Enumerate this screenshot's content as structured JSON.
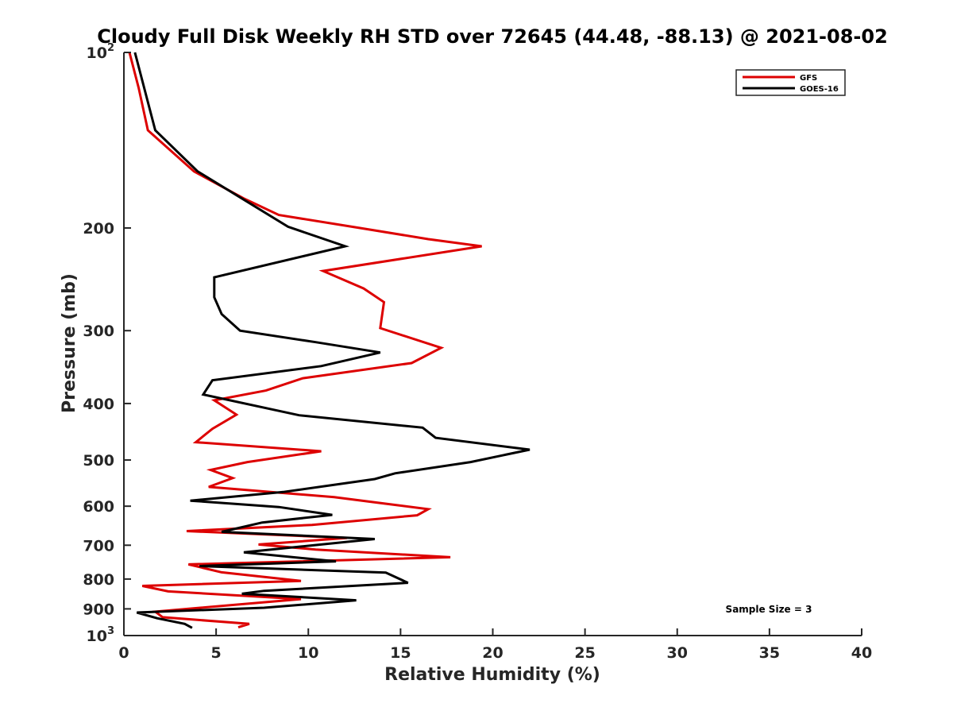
{
  "chart_data": {
    "type": "line",
    "title": "Cloudy Full Disk Weekly RH STD over 72645 (44.48, -88.13) @ 2021-08-02",
    "xlabel": "Relative Humidity (%)",
    "ylabel": "Pressure (mb)",
    "xlim": [
      0,
      40
    ],
    "ylim": [
      100,
      1000
    ],
    "yscale": "log",
    "y_reversed": true,
    "grid": false,
    "legend_position": "top-right",
    "x_ticks": [
      "0",
      "5",
      "10",
      "15",
      "20",
      "25",
      "30",
      "35",
      "40"
    ],
    "y_ticks": [
      {
        "value": 100,
        "base": "10",
        "exp": "2"
      },
      {
        "value": 200,
        "label": "200"
      },
      {
        "value": 300,
        "label": "300"
      },
      {
        "value": 400,
        "label": "400"
      },
      {
        "value": 500,
        "label": "500"
      },
      {
        "value": 600,
        "label": "600"
      },
      {
        "value": 700,
        "label": "700"
      },
      {
        "value": 800,
        "label": "800"
      },
      {
        "value": 900,
        "label": "900"
      },
      {
        "value": 1000,
        "base": "10",
        "exp": "3"
      }
    ],
    "annotation": "Sample Size = 3",
    "series": [
      {
        "name": "GFS",
        "color": "#dd0000",
        "points": [
          [
            0.3,
            100
          ],
          [
            0.8,
            115
          ],
          [
            1.3,
            136
          ],
          [
            3.8,
            160
          ],
          [
            6.5,
            178
          ],
          [
            8.4,
            190
          ],
          [
            12.8,
            200
          ],
          [
            16.5,
            209
          ],
          [
            19.4,
            215
          ],
          [
            10.8,
            237
          ],
          [
            13.0,
            254
          ],
          [
            14.1,
            268
          ],
          [
            13.9,
            297
          ],
          [
            17.2,
            321
          ],
          [
            15.6,
            341
          ],
          [
            9.7,
            362
          ],
          [
            7.7,
            380
          ],
          [
            4.9,
            395
          ],
          [
            6.1,
            418
          ],
          [
            4.8,
            442
          ],
          [
            3.9,
            466
          ],
          [
            10.7,
            483
          ],
          [
            6.7,
            504
          ],
          [
            4.7,
            520
          ],
          [
            5.9,
            537
          ],
          [
            4.6,
            556
          ],
          [
            11.4,
            579
          ],
          [
            16.5,
            607
          ],
          [
            15.9,
            622
          ],
          [
            10.2,
            646
          ],
          [
            3.4,
            662
          ],
          [
            12.1,
            680
          ],
          [
            7.3,
            698
          ],
          [
            10.4,
            712
          ],
          [
            17.7,
            734
          ],
          [
            3.5,
            755
          ],
          [
            5.3,
            779
          ],
          [
            9.6,
            806
          ],
          [
            1.0,
            822
          ],
          [
            2.4,
            840
          ],
          [
            9.6,
            866
          ],
          [
            1.7,
            910
          ],
          [
            2.1,
            930
          ],
          [
            6.8,
            955
          ],
          [
            6.2,
            968
          ]
        ]
      },
      {
        "name": "GOES-16",
        "color": "#000000",
        "points": [
          [
            0.6,
            100
          ],
          [
            1.7,
            136
          ],
          [
            4.0,
            160
          ],
          [
            8.9,
            199
          ],
          [
            12.0,
            215
          ],
          [
            4.9,
            243
          ],
          [
            4.9,
            263
          ],
          [
            5.3,
            281
          ],
          [
            6.3,
            300
          ],
          [
            10.4,
            314
          ],
          [
            13.9,
            327
          ],
          [
            10.7,
            345
          ],
          [
            4.8,
            365
          ],
          [
            4.3,
            386
          ],
          [
            9.5,
            419
          ],
          [
            16.2,
            440
          ],
          [
            16.9,
            458
          ],
          [
            22.0,
            480
          ],
          [
            18.8,
            504
          ],
          [
            14.7,
            527
          ],
          [
            13.6,
            539
          ],
          [
            8.7,
            567
          ],
          [
            3.6,
            587
          ],
          [
            8.4,
            602
          ],
          [
            11.3,
            621
          ],
          [
            7.5,
            640
          ],
          [
            5.3,
            664
          ],
          [
            13.6,
            683
          ],
          [
            6.5,
            720
          ],
          [
            11.5,
            746
          ],
          [
            4.1,
            760
          ],
          [
            14.2,
            780
          ],
          [
            15.4,
            812
          ],
          [
            7.6,
            838
          ],
          [
            6.4,
            848
          ],
          [
            12.6,
            870
          ],
          [
            7.6,
            896
          ],
          [
            0.7,
            913
          ],
          [
            1.8,
            934
          ],
          [
            3.3,
            955
          ],
          [
            3.7,
            970
          ]
        ]
      }
    ]
  }
}
